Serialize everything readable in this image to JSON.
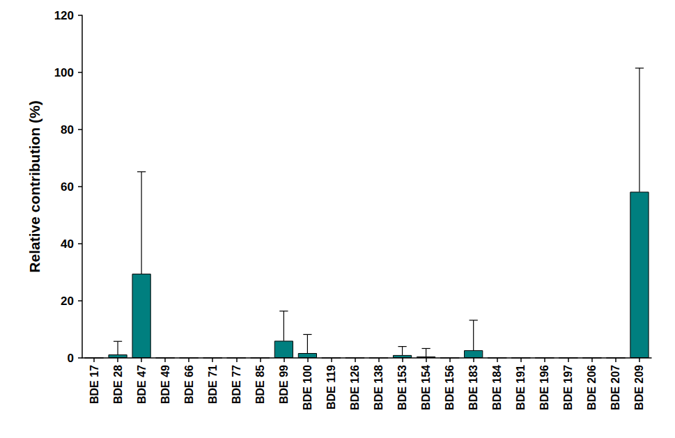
{
  "chart_data": {
    "type": "bar",
    "y_label": "Relative contribution (%)",
    "categories": [
      "BDE 17",
      "BDE 28",
      "BDE 47",
      "BDE 49",
      "BDE 66",
      "BDE 71",
      "BDE 77",
      "BDE 85",
      "BDE 99",
      "BDE 100",
      "BDE 119",
      "BDE 126",
      "BDE 138",
      "BDE 153",
      "BDE 154",
      "BDE 156",
      "BDE 183",
      "BDE 184",
      "BDE 191",
      "BDE 196",
      "BDE 197",
      "BDE 206",
      "BDE 207",
      "BDE 209"
    ],
    "values": [
      0,
      1.2,
      29.5,
      0,
      0,
      0,
      0,
      0,
      6.0,
      1.7,
      0,
      0,
      0,
      1.0,
      0.5,
      0,
      2.7,
      0,
      0,
      0,
      0,
      0,
      0,
      58.2
    ],
    "errors": [
      null,
      4.6,
      35.7,
      null,
      null,
      null,
      null,
      null,
      10.4,
      6.5,
      null,
      null,
      null,
      3.0,
      2.8,
      null,
      10.5,
      null,
      null,
      null,
      null,
      null,
      null,
      43.3
    ],
    "color": "#007f7f",
    "ylim": [
      0,
      120
    ],
    "yticks": [
      0,
      20,
      40,
      60,
      80,
      100,
      120
    ],
    "grid": false
  }
}
